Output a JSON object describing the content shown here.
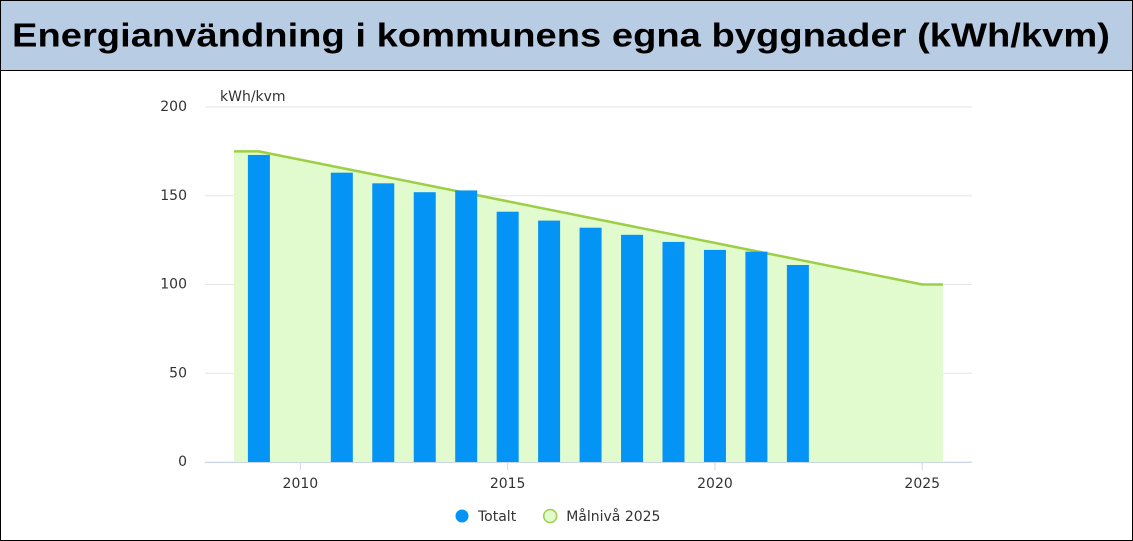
{
  "chart_data": {
    "type": "combo",
    "title": "Energianvändning i kommunens egna byggnader (kWh/kvm)",
    "y_label": "kWh/kvm",
    "xlim": [
      2007.7,
      2026.2
    ],
    "xticks": [
      2010,
      2015,
      2020,
      2025
    ],
    "ylim": [
      0,
      200
    ],
    "yticks": [
      0,
      50,
      100,
      150,
      200
    ],
    "grid": true,
    "legend": "bottom",
    "series": [
      {
        "name": "Totalt",
        "type": "bar",
        "color": "#0494f5",
        "x": [
          2009,
          2011,
          2012,
          2013,
          2014,
          2015,
          2016,
          2017,
          2018,
          2019,
          2020,
          2021,
          2022
        ],
        "values": [
          173,
          163,
          157,
          152,
          153,
          141,
          136,
          132,
          128,
          124,
          119.5,
          118.5,
          111
        ]
      },
      {
        "name": "Målnivå 2025",
        "type": "area",
        "color": "#9ccf45",
        "fill": "#e2fbce",
        "x": [
          2008.4,
          2009,
          2025,
          2025.5
        ],
        "values": [
          175,
          175,
          100,
          100
        ]
      }
    ]
  }
}
